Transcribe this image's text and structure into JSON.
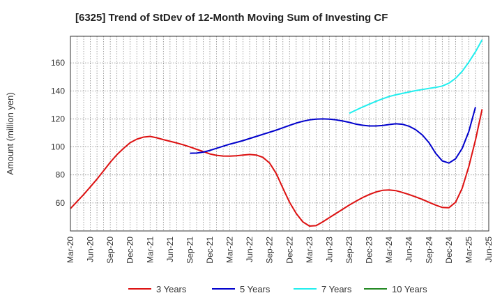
{
  "chart_data": {
    "type": "line",
    "title": "[6325]  Trend of StDev of 12-Month Moving Sum of Investing CF",
    "ylabel": "Amount (million yen)",
    "xlabel": "",
    "x_tick_labels": [
      "Mar-20",
      "Jun-20",
      "Sep-20",
      "Dec-20",
      "Mar-21",
      "Jun-21",
      "Sep-21",
      "Dec-21",
      "Mar-22",
      "Jun-22",
      "Sep-22",
      "Dec-22",
      "Mar-23",
      "Jun-23",
      "Sep-23",
      "Dec-23",
      "Mar-24",
      "Jun-24",
      "Sep-24",
      "Dec-24",
      "Mar-25",
      "Jun-25"
    ],
    "y_ticks": [
      60,
      80,
      100,
      120,
      140,
      160
    ],
    "ylim": [
      40,
      179
    ],
    "grid": true,
    "legend_position": "bottom",
    "series": [
      {
        "name": "3 Years",
        "color": "#dd1111",
        "points": [
          [
            0,
            56
          ],
          [
            1,
            61
          ],
          [
            2,
            66
          ],
          [
            3,
            71.5
          ],
          [
            4,
            77
          ],
          [
            5,
            83
          ],
          [
            6,
            89
          ],
          [
            7,
            94.5
          ],
          [
            8,
            99
          ],
          [
            9,
            103
          ],
          [
            10,
            105.5
          ],
          [
            11,
            107
          ],
          [
            12,
            107.5
          ],
          [
            13,
            106.5
          ],
          [
            14,
            105.2
          ],
          [
            15,
            104
          ],
          [
            16,
            102.8
          ],
          [
            17,
            101.5
          ],
          [
            18,
            100
          ],
          [
            19,
            98.3
          ],
          [
            20,
            96.7
          ],
          [
            21,
            95
          ],
          [
            22,
            94
          ],
          [
            23,
            93.5
          ],
          [
            24,
            93.4
          ],
          [
            25,
            93.7
          ],
          [
            26,
            94.2
          ],
          [
            27,
            94.6
          ],
          [
            28,
            94.2
          ],
          [
            29,
            92.5
          ],
          [
            30,
            88.5
          ],
          [
            31,
            81
          ],
          [
            32,
            70.5
          ],
          [
            33,
            60.5
          ],
          [
            34,
            52.5
          ],
          [
            35,
            46.5
          ],
          [
            36,
            43.5
          ],
          [
            37,
            43.8
          ],
          [
            38,
            46.5
          ],
          [
            39,
            49.5
          ],
          [
            40,
            52.5
          ],
          [
            41,
            55.5
          ],
          [
            42,
            58.5
          ],
          [
            43,
            61.2
          ],
          [
            44,
            63.8
          ],
          [
            45,
            66
          ],
          [
            46,
            67.8
          ],
          [
            47,
            69
          ],
          [
            48,
            69.3
          ],
          [
            49,
            68.8
          ],
          [
            50,
            67.5
          ],
          [
            51,
            66
          ],
          [
            52,
            64.3
          ],
          [
            53,
            62.5
          ],
          [
            54,
            60.5
          ],
          [
            55,
            58.5
          ],
          [
            56,
            56.8
          ],
          [
            57,
            56.6
          ],
          [
            58,
            60.5
          ],
          [
            59,
            70.5
          ],
          [
            60,
            86
          ],
          [
            61,
            105
          ],
          [
            62,
            127
          ]
        ]
      },
      {
        "name": "5 Years",
        "color": "#0000cc",
        "points": [
          [
            18,
            95.5
          ],
          [
            19,
            95.6
          ],
          [
            20,
            96.3
          ],
          [
            21,
            97.5
          ],
          [
            22,
            99
          ],
          [
            23,
            100.5
          ],
          [
            24,
            102
          ],
          [
            25,
            103.2
          ],
          [
            26,
            104.5
          ],
          [
            27,
            106
          ],
          [
            28,
            107.5
          ],
          [
            29,
            109
          ],
          [
            30,
            110.5
          ],
          [
            31,
            112
          ],
          [
            32,
            113.7
          ],
          [
            33,
            115.4
          ],
          [
            34,
            117
          ],
          [
            35,
            118.3
          ],
          [
            36,
            119.3
          ],
          [
            37,
            119.8
          ],
          [
            38,
            120
          ],
          [
            39,
            119.8
          ],
          [
            40,
            119.3
          ],
          [
            41,
            118.5
          ],
          [
            42,
            117.5
          ],
          [
            43,
            116.3
          ],
          [
            44,
            115.5
          ],
          [
            45,
            115
          ],
          [
            46,
            115
          ],
          [
            47,
            115.3
          ],
          [
            48,
            116
          ],
          [
            49,
            116.5
          ],
          [
            50,
            116.2
          ],
          [
            51,
            114.8
          ],
          [
            52,
            112.3
          ],
          [
            53,
            108.5
          ],
          [
            54,
            103
          ],
          [
            55,
            95.5
          ],
          [
            56,
            90
          ],
          [
            57,
            88.5
          ],
          [
            58,
            91.5
          ],
          [
            59,
            99
          ],
          [
            60,
            111
          ],
          [
            61,
            128.5
          ]
        ]
      },
      {
        "name": "7 Years",
        "color": "#22eeee",
        "points": [
          [
            42,
            124
          ],
          [
            43,
            126.3
          ],
          [
            44,
            128.5
          ],
          [
            45,
            130.5
          ],
          [
            46,
            132.5
          ],
          [
            47,
            134.3
          ],
          [
            48,
            136
          ],
          [
            49,
            137.2
          ],
          [
            50,
            138.2
          ],
          [
            51,
            139.2
          ],
          [
            52,
            140.2
          ],
          [
            53,
            141
          ],
          [
            54,
            141.8
          ],
          [
            55,
            142.5
          ],
          [
            56,
            143.5
          ],
          [
            57,
            145.5
          ],
          [
            58,
            149
          ],
          [
            59,
            154
          ],
          [
            60,
            160.5
          ],
          [
            61,
            168
          ],
          [
            62,
            176.5
          ]
        ]
      },
      {
        "name": "10 Years",
        "color": "#228822",
        "points": []
      }
    ]
  }
}
